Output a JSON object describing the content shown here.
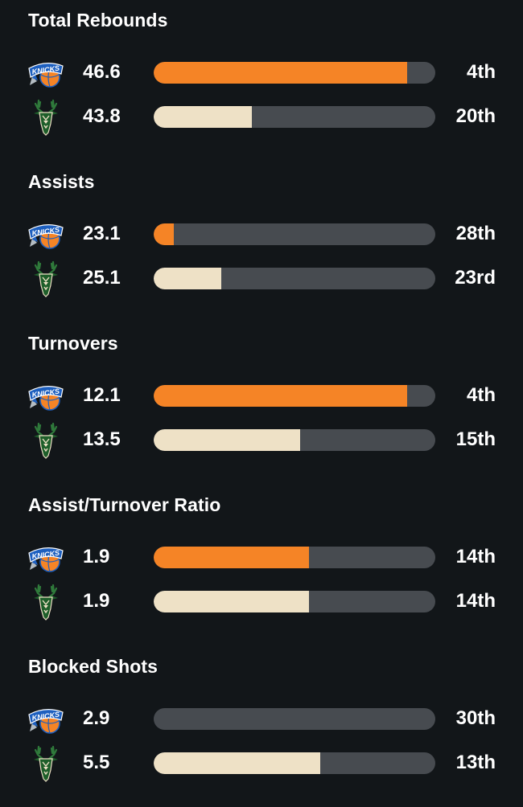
{
  "colors": {
    "background": "#121619",
    "track": "#474b50",
    "knicks_bar": "#f58426",
    "bucks_bar": "#eee1c6",
    "knicks_blue": "#1d5fbf",
    "bucks_green": "#1e5e2a"
  },
  "chart_data": {
    "type": "bar",
    "orientation": "horizontal",
    "bar_scale": "rank (1st = full bar, 30th = empty)",
    "teams": [
      {
        "key": "knicks",
        "logo": "knicks-logo-icon"
      },
      {
        "key": "bucks",
        "logo": "bucks-logo-icon"
      }
    ],
    "stats": [
      {
        "title": "Total Rebounds",
        "rows": [
          {
            "team": "knicks",
            "value": "46.6",
            "rank": "4th",
            "fill": 0.9
          },
          {
            "team": "bucks",
            "value": "43.8",
            "rank": "20th",
            "fill": 0.35
          }
        ]
      },
      {
        "title": "Assists",
        "rows": [
          {
            "team": "knicks",
            "value": "23.1",
            "rank": "28th",
            "fill": 0.07
          },
          {
            "team": "bucks",
            "value": "25.1",
            "rank": "23rd",
            "fill": 0.24
          }
        ]
      },
      {
        "title": "Turnovers",
        "rows": [
          {
            "team": "knicks",
            "value": "12.1",
            "rank": "4th",
            "fill": 0.9
          },
          {
            "team": "bucks",
            "value": "13.5",
            "rank": "15th",
            "fill": 0.52
          }
        ]
      },
      {
        "title": "Assist/Turnover Ratio",
        "rows": [
          {
            "team": "knicks",
            "value": "1.9",
            "rank": "14th",
            "fill": 0.55
          },
          {
            "team": "bucks",
            "value": "1.9",
            "rank": "14th",
            "fill": 0.55
          }
        ]
      },
      {
        "title": "Blocked Shots",
        "rows": [
          {
            "team": "knicks",
            "value": "2.9",
            "rank": "30th",
            "fill": 0.0
          },
          {
            "team": "bucks",
            "value": "5.5",
            "rank": "13th",
            "fill": 0.59
          }
        ]
      }
    ]
  }
}
